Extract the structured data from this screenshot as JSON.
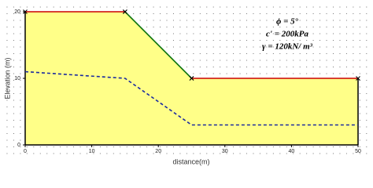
{
  "chart_data": {
    "type": "line",
    "xlabel": "distance(m)",
    "ylabel": "Elevation (m)",
    "annotations": [
      "ϕ = 5°",
      "c' = 200kPa",
      "γ = 120kN/ m³"
    ],
    "xlim": [
      0,
      50
    ],
    "xticks": [
      0,
      10,
      20,
      30,
      40,
      50
    ],
    "ylim": [
      0,
      20
    ],
    "yticks": [
      0,
      10,
      20
    ],
    "fill_color": "#ffff88",
    "grid": true,
    "series": [
      {
        "color": "#cc0000",
        "dashed": false,
        "markers": true,
        "x": [
          0,
          15
        ],
        "values": [
          20,
          20
        ]
      },
      {
        "color": "#117711",
        "dashed": false,
        "markers": true,
        "x": [
          15,
          25
        ],
        "values": [
          20,
          10
        ]
      },
      {
        "color": "#cc0000",
        "dashed": false,
        "markers": true,
        "x": [
          25,
          50
        ],
        "values": [
          10,
          10
        ]
      },
      {
        "color": "#1a2aa0",
        "dashed": true,
        "markers": false,
        "x": [
          0,
          15,
          25,
          50
        ],
        "values": [
          11,
          10,
          3,
          3
        ]
      }
    ]
  }
}
